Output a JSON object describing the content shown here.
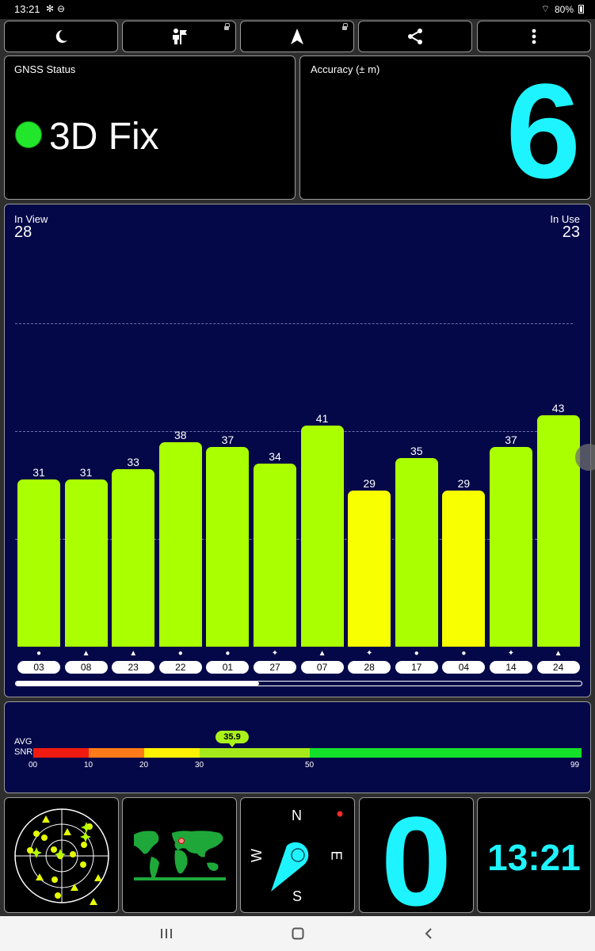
{
  "status_bar": {
    "time": "13:21",
    "battery": "80%"
  },
  "gnss": {
    "label": "GNSS Status",
    "fix": "3D Fix",
    "fix_color": "#22e62c"
  },
  "accuracy": {
    "label": "Accuracy (± m)",
    "value": "6"
  },
  "satellites": {
    "in_view_label": "In View",
    "in_view": "28",
    "in_use_label": "In Use",
    "in_use": "23",
    "scroll_fraction": 0.43
  },
  "chart_data": {
    "type": "bar",
    "categories": [
      "03",
      "08",
      "23",
      "22",
      "01",
      "27",
      "07",
      "28",
      "17",
      "04",
      "14",
      "24"
    ],
    "values": [
      31,
      31,
      33,
      38,
      37,
      34,
      41,
      29,
      35,
      29,
      37,
      43
    ],
    "constellation_symbols": [
      "●",
      "▲",
      "▲",
      "●",
      "●",
      "✦",
      "▲",
      "✦",
      "●",
      "●",
      "✦",
      "▲"
    ],
    "labels": [
      "31",
      "31",
      "33",
      "38",
      "37",
      "34",
      "41",
      "29",
      "35",
      "29",
      "37",
      "43"
    ],
    "ylim": [
      0,
      60
    ],
    "colors": {
      "high": "#aaff00",
      "low": "#f8ff00"
    },
    "low_threshold": 30
  },
  "snr": {
    "label_top": "AVG",
    "label_bottom": "SNR",
    "avg": 35.9,
    "avg_label": "35.9",
    "ticks": [
      "00",
      "10",
      "20",
      "30",
      "50",
      "99"
    ],
    "segments": [
      {
        "from": 0,
        "to": 10,
        "color": "#ef1b10"
      },
      {
        "from": 10,
        "to": 20,
        "color": "#ff7a18"
      },
      {
        "from": 20,
        "to": 30,
        "color": "#fff200"
      },
      {
        "from": 30,
        "to": 50,
        "color": "#a6e91a"
      },
      {
        "from": 50,
        "to": 99,
        "color": "#14e02a"
      }
    ]
  },
  "compass": {
    "n": "N",
    "s": "S",
    "e": "E",
    "w": "W"
  },
  "speed": {
    "value": "0"
  },
  "clock": {
    "value": "13:21"
  }
}
